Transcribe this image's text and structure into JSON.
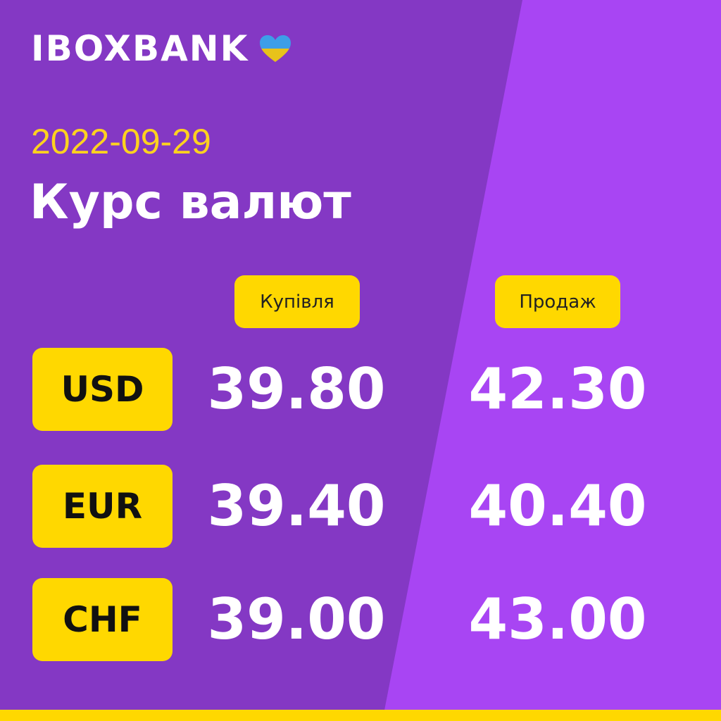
{
  "brand": {
    "name": "IBOXBANK",
    "heart_icon": "ukraine-heart-icon"
  },
  "date": "2022-09-29",
  "title": "Курс валют",
  "columns": {
    "buy": "Купівля",
    "sell": "Продаж"
  },
  "rates": [
    {
      "currency": "USD",
      "buy": "39.80",
      "sell": "42.30"
    },
    {
      "currency": "EUR",
      "buy": "39.40",
      "sell": "40.40"
    },
    {
      "currency": "CHF",
      "buy": "39.00",
      "sell": "43.00"
    }
  ],
  "colors": {
    "dark_purple": "#8438c4",
    "light_purple": "#a845f3",
    "yellow": "#ffd800",
    "date_yellow": "#ffd21f"
  }
}
